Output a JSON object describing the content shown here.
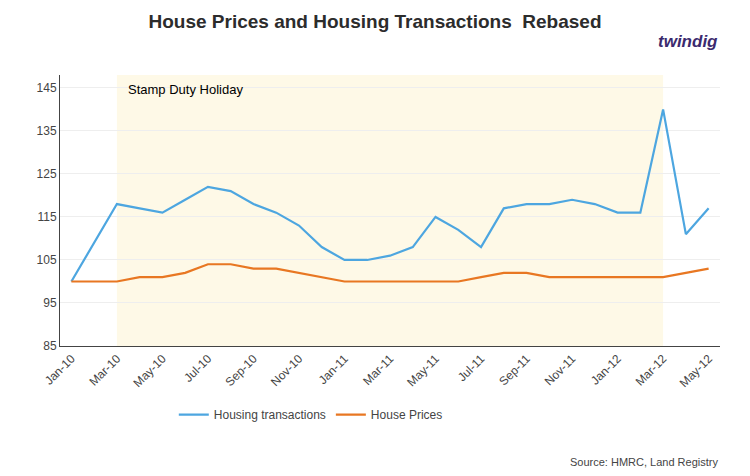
{
  "chart_data": {
    "type": "line",
    "title": "House Prices and Housing Transactions  Rebased",
    "categories": [
      "Jan-10",
      null,
      "Mar-10",
      null,
      "May-10",
      null,
      "Jul-10",
      null,
      "Sep-10",
      null,
      "Nov-10",
      null,
      "Jan-11",
      null,
      "Mar-11",
      null,
      "May-11",
      null,
      "Jul-11",
      null,
      "Sep-11",
      null,
      "Nov-11",
      null,
      "Jan-12",
      null,
      "Mar-12",
      null,
      "May-12"
    ],
    "series": [
      {
        "name": "Housing transactions",
        "color": "#4da6e0",
        "values": [
          100,
          109,
          118,
          117,
          116,
          119,
          122,
          121,
          118,
          116,
          113,
          108,
          105,
          105,
          106,
          108,
          115,
          112,
          108,
          117,
          118,
          118,
          119,
          118,
          116,
          116,
          140,
          111,
          117
        ]
      },
      {
        "name": "House Prices",
        "color": "#e87722",
        "values": [
          100,
          100,
          100,
          101,
          101,
          102,
          104,
          104,
          103,
          103,
          102,
          101,
          100,
          100,
          100,
          100,
          100,
          100,
          101,
          102,
          102,
          101,
          101,
          101,
          101,
          101,
          101,
          102,
          103
        ]
      }
    ],
    "ylim": [
      85,
      148
    ],
    "yticks": [
      85,
      95,
      105,
      115,
      125,
      135,
      145
    ],
    "grid": true,
    "legend": "bottom",
    "annotations": [
      {
        "text": "Stamp Duty Holiday",
        "x_start": "Mar-10",
        "x_end": "Mar-12",
        "color": "#fef9e7"
      }
    ],
    "source": "Source: HMRC, Land Registry",
    "logo": "twindig"
  }
}
